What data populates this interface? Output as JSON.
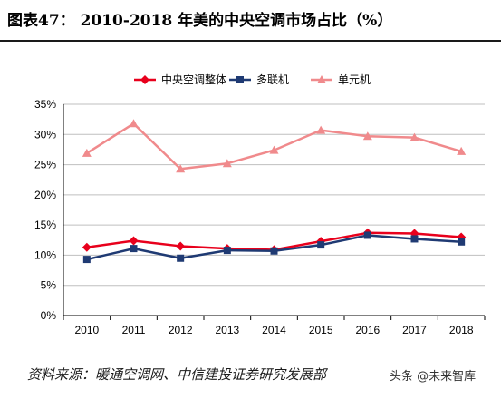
{
  "title": "图表47： 2010-2018 年美的中央空调市场占比（%）",
  "source": "资料来源：暖通空调网、中信建投证券研究发展部",
  "watermark": "头条 @未来智库",
  "chart_data": {
    "type": "line",
    "title": "",
    "xlabel": "",
    "ylabel": "",
    "x": [
      "2010",
      "2011",
      "2012",
      "2013",
      "2014",
      "2015",
      "2016",
      "2017",
      "2018"
    ],
    "ylim": [
      0,
      35
    ],
    "yticks": [
      "0%",
      "5%",
      "10%",
      "15%",
      "20%",
      "25%",
      "30%",
      "35%"
    ],
    "ytick_values": [
      0,
      5,
      10,
      15,
      20,
      25,
      30,
      35
    ],
    "grid": true,
    "legend_position": "top",
    "series": [
      {
        "name": "中央空调整体",
        "color": "#e8001c",
        "marker": "diamond",
        "values": [
          11.3,
          12.4,
          11.5,
          11.1,
          10.9,
          12.3,
          13.7,
          13.6,
          13.0
        ]
      },
      {
        "name": "多联机",
        "color": "#1f3a73",
        "marker": "square",
        "values": [
          9.3,
          11.1,
          9.5,
          10.8,
          10.7,
          11.7,
          13.3,
          12.7,
          12.2
        ]
      },
      {
        "name": "单元机",
        "color": "#f08a8c",
        "marker": "triangle",
        "values": [
          26.9,
          31.8,
          24.3,
          25.2,
          27.4,
          30.7,
          29.7,
          29.5,
          27.2
        ]
      }
    ]
  }
}
